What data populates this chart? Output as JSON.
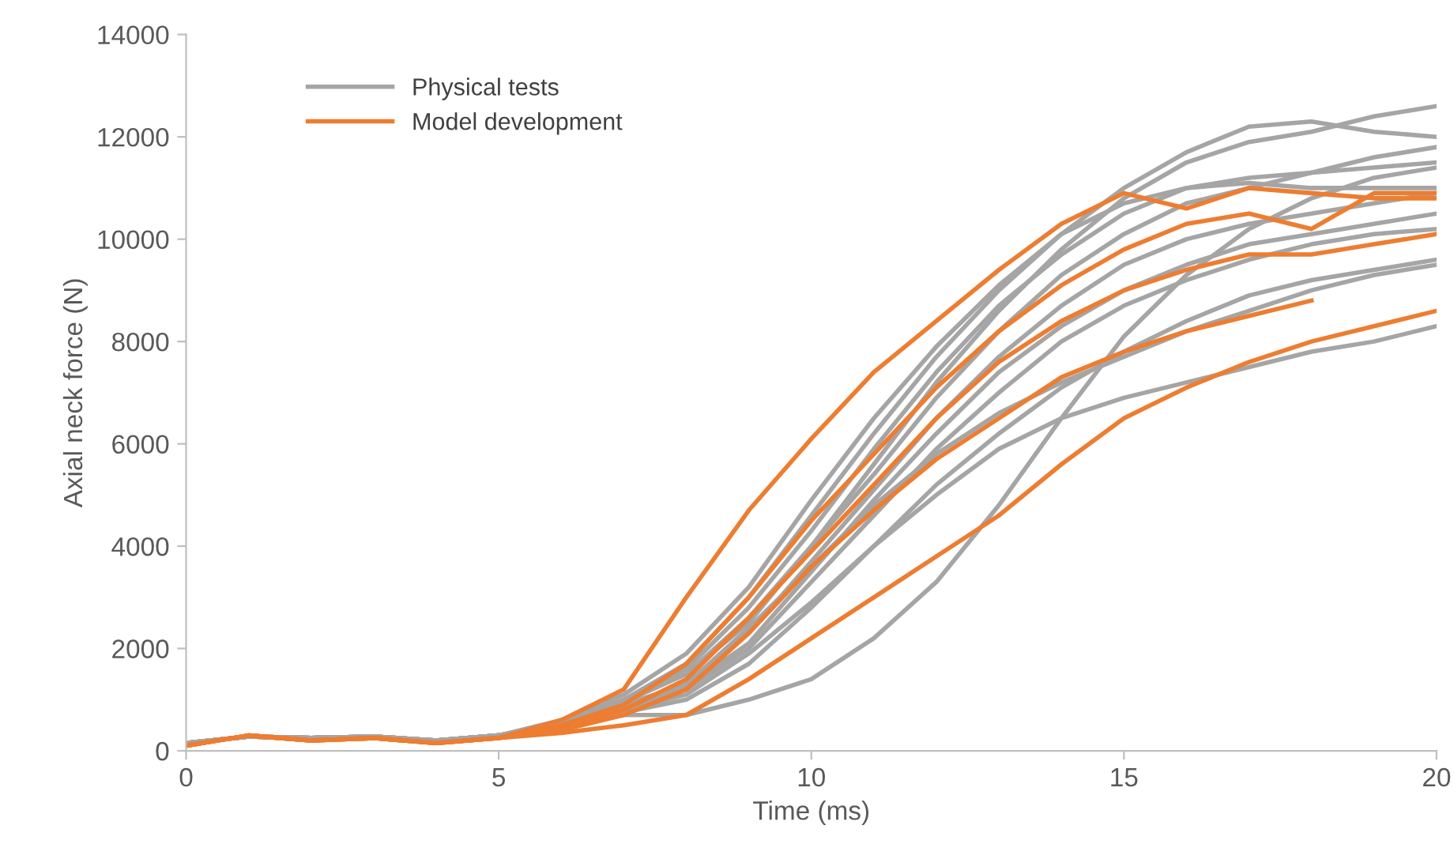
{
  "chart_data": {
    "type": "line",
    "xlabel": "Time (ms)",
    "ylabel": "Axial neck force (N)",
    "x": [
      0,
      1,
      2,
      3,
      4,
      5,
      6,
      7,
      8,
      9,
      10,
      11,
      12,
      13,
      14,
      15,
      16,
      17,
      18,
      19,
      20
    ],
    "xlim": [
      0,
      20
    ],
    "xticks": [
      0,
      5,
      10,
      15,
      20
    ],
    "ylim": [
      0,
      14000
    ],
    "yticks": [
      0,
      2000,
      4000,
      6000,
      8000,
      10000,
      12000,
      14000
    ],
    "grid": false,
    "legend": "top left",
    "marker": "none",
    "line_style": "solid",
    "series": [
      {
        "name": "Physical tests",
        "color": "#a5a5a5",
        "values": [
          150,
          280,
          250,
          280,
          200,
          300,
          550,
          1000,
          1500,
          2500,
          4000,
          5600,
          7200,
          8600,
          9800,
          10800,
          11500,
          11900,
          12100,
          12400,
          12600
        ]
      },
      {
        "color": "#a5a5a5",
        "values": [
          150,
          280,
          250,
          280,
          200,
          300,
          500,
          700,
          700,
          1000,
          1400,
          2200,
          3300,
          4800,
          6500,
          8100,
          9300,
          10200,
          10800,
          11200,
          11400
        ]
      },
      {
        "color": "#a5a5a5",
        "values": [
          150,
          280,
          250,
          280,
          200,
          300,
          500,
          800,
          1100,
          1900,
          2900,
          4000,
          5000,
          5900,
          6500,
          6900,
          7200,
          7500,
          7800,
          8000,
          8300
        ]
      },
      {
        "color": "#a5a5a5",
        "values": [
          150,
          280,
          250,
          280,
          200,
          300,
          550,
          1000,
          1700,
          3000,
          4600,
          6200,
          7700,
          9000,
          10100,
          11000,
          11700,
          12200,
          12300,
          12100,
          12000
        ]
      },
      {
        "color": "#a5a5a5",
        "values": [
          150,
          280,
          250,
          280,
          200,
          300,
          550,
          1000,
          1600,
          2800,
          4300,
          5900,
          7400,
          8700,
          9700,
          10500,
          11000,
          11200,
          11300,
          11400,
          11500
        ]
      },
      {
        "color": "#a5a5a5",
        "values": [
          150,
          280,
          250,
          280,
          200,
          300,
          550,
          900,
          1300,
          2300,
          3700,
          5100,
          6500,
          7700,
          8700,
          9500,
          10000,
          10300,
          10500,
          10700,
          10900
        ]
      },
      {
        "color": "#a5a5a5",
        "values": [
          150,
          280,
          250,
          280,
          200,
          300,
          550,
          850,
          1200,
          2000,
          3300,
          4600,
          5900,
          7000,
          8000,
          8700,
          9200,
          9600,
          9900,
          10100,
          10200
        ]
      },
      {
        "color": "#a5a5a5",
        "values": [
          150,
          280,
          250,
          280,
          200,
          300,
          500,
          750,
          1000,
          1700,
          2800,
          4000,
          5200,
          6200,
          7100,
          7800,
          8400,
          8900,
          9200,
          9400,
          9600
        ]
      },
      {
        "color": "#a5a5a5",
        "values": [
          150,
          280,
          250,
          280,
          200,
          300,
          600,
          1100,
          1900,
          3200,
          4900,
          6500,
          7900,
          9100,
          10100,
          10700,
          11000,
          11100,
          11000,
          11000,
          11000
        ]
      },
      {
        "color": "#a5a5a5",
        "values": [
          150,
          280,
          250,
          280,
          200,
          300,
          550,
          950,
          1500,
          2600,
          4000,
          5400,
          6900,
          8200,
          9300,
          10100,
          10700,
          11000,
          11300,
          11600,
          11800
        ]
      },
      {
        "color": "#a5a5a5",
        "values": [
          150,
          280,
          250,
          280,
          200,
          300,
          550,
          900,
          1250,
          2100,
          3500,
          4900,
          6200,
          7400,
          8300,
          9000,
          9500,
          9900,
          10100,
          10300,
          10500
        ]
      },
      {
        "color": "#a5a5a5",
        "values": [
          150,
          280,
          250,
          280,
          200,
          300,
          550,
          900,
          1300,
          2400,
          3600,
          4800,
          5800,
          6600,
          7200,
          7700,
          8200,
          8600,
          9000,
          9300,
          9500
        ]
      },
      {
        "name": "Model development",
        "color": "#ed7d31",
        "values": [
          100,
          300,
          200,
          250,
          150,
          250,
          600,
          1200,
          3000,
          4700,
          6100,
          7400,
          8400,
          9400,
          10300,
          10900,
          10600,
          11000,
          10900,
          10800,
          10800
        ]
      },
      {
        "color": "#ed7d31",
        "values": [
          100,
          300,
          200,
          250,
          150,
          250,
          500,
          900,
          1700,
          3000,
          4500,
          5800,
          7100,
          8200,
          9100,
          9800,
          10300,
          10500,
          10200,
          10900,
          10900
        ]
      },
      {
        "color": "#ed7d31",
        "values": [
          100,
          300,
          200,
          250,
          150,
          250,
          450,
          800,
          1400,
          2600,
          3900,
          5200,
          6500,
          7600,
          8400,
          9000,
          9400,
          9700,
          9700,
          9900,
          10100
        ]
      },
      {
        "color": "#ed7d31",
        "values": [
          100,
          300,
          200,
          250,
          150,
          250,
          400,
          700,
          1200,
          2300,
          3600,
          4700,
          5700,
          6500,
          7300,
          7800,
          8200,
          8500,
          8800,
          null,
          null
        ]
      },
      {
        "color": "#ed7d31",
        "values": [
          100,
          300,
          200,
          250,
          150,
          250,
          350,
          500,
          700,
          1400,
          2200,
          3000,
          3800,
          4600,
          5600,
          6500,
          7100,
          7600,
          8000,
          8300,
          8600
        ]
      }
    ]
  }
}
